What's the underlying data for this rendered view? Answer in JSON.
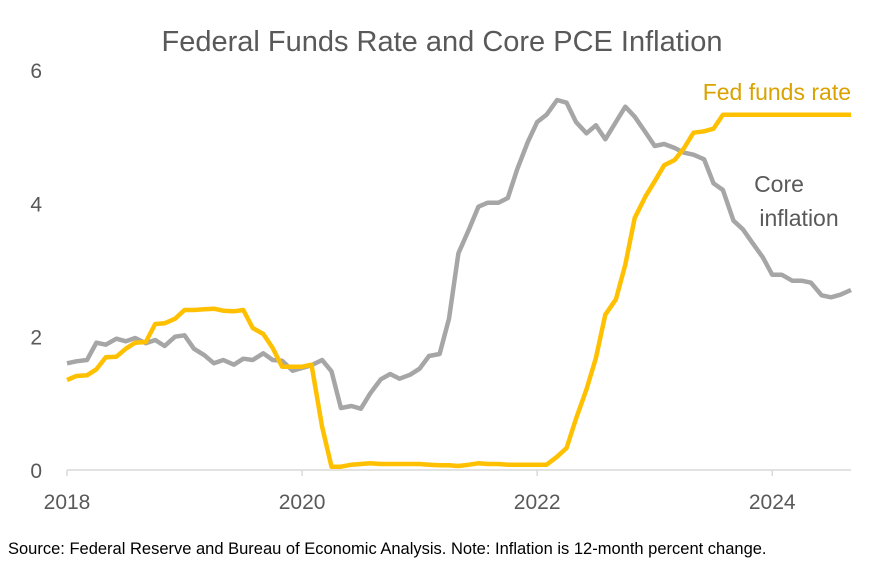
{
  "chart_data": {
    "type": "line",
    "title": "Federal Funds Rate and Core PCE Inflation",
    "x_ticks": [
      2018,
      2020,
      2022,
      2024
    ],
    "y_ticks": [
      0,
      2,
      4,
      6
    ],
    "xlim": [
      2018.0,
      2024.67
    ],
    "ylim": [
      0,
      6
    ],
    "grid": false,
    "annotations": {
      "fed_label": "Fed funds rate",
      "core_label_line1": "Core",
      "core_label_line2": "inflation"
    },
    "colors": {
      "fed": "#FFC000",
      "core": "#A6A6A6",
      "text": "#595959"
    },
    "series": [
      {
        "key": "fed",
        "x": [
          2018.0,
          2018.08,
          2018.17,
          2018.25,
          2018.33,
          2018.42,
          2018.5,
          2018.58,
          2018.67,
          2018.75,
          2018.83,
          2018.92,
          2019.0,
          2019.08,
          2019.17,
          2019.25,
          2019.33,
          2019.42,
          2019.5,
          2019.58,
          2019.67,
          2019.75,
          2019.83,
          2019.92,
          2020.0,
          2020.08,
          2020.17,
          2020.25,
          2020.33,
          2020.42,
          2020.5,
          2020.58,
          2020.67,
          2020.75,
          2020.83,
          2020.92,
          2021.0,
          2021.08,
          2021.17,
          2021.25,
          2021.33,
          2021.42,
          2021.5,
          2021.58,
          2021.67,
          2021.75,
          2021.83,
          2021.92,
          2022.0,
          2022.08,
          2022.17,
          2022.25,
          2022.33,
          2022.42,
          2022.5,
          2022.58,
          2022.67,
          2022.75,
          2022.83,
          2022.92,
          2023.0,
          2023.08,
          2023.17,
          2023.25,
          2023.33,
          2023.42,
          2023.5,
          2023.58,
          2023.67,
          2023.75,
          2023.83,
          2023.92,
          2024.0,
          2024.08,
          2024.17,
          2024.25,
          2024.33,
          2024.42,
          2024.5,
          2024.58,
          2024.67
        ],
        "y": [
          1.35,
          1.41,
          1.42,
          1.51,
          1.69,
          1.7,
          1.82,
          1.91,
          1.92,
          2.19,
          2.2,
          2.27,
          2.4,
          2.4,
          2.41,
          2.42,
          2.39,
          2.38,
          2.4,
          2.13,
          2.04,
          1.83,
          1.55,
          1.55,
          1.55,
          1.58,
          0.65,
          0.05,
          0.05,
          0.08,
          0.09,
          0.1,
          0.09,
          0.09,
          0.09,
          0.09,
          0.09,
          0.08,
          0.07,
          0.07,
          0.06,
          0.08,
          0.1,
          0.09,
          0.09,
          0.08,
          0.08,
          0.08,
          0.08,
          0.08,
          0.2,
          0.33,
          0.77,
          1.21,
          1.68,
          2.33,
          2.56,
          3.08,
          3.78,
          4.1,
          4.33,
          4.57,
          4.65,
          4.83,
          5.06,
          5.08,
          5.12,
          5.33,
          5.33,
          5.33,
          5.33,
          5.33,
          5.33,
          5.33,
          5.33,
          5.33,
          5.33,
          5.33,
          5.33,
          5.33,
          5.33
        ]
      },
      {
        "key": "core",
        "x": [
          2018.0,
          2018.08,
          2018.17,
          2018.25,
          2018.33,
          2018.42,
          2018.5,
          2018.58,
          2018.67,
          2018.75,
          2018.83,
          2018.92,
          2019.0,
          2019.08,
          2019.17,
          2019.25,
          2019.33,
          2019.42,
          2019.5,
          2019.58,
          2019.67,
          2019.75,
          2019.83,
          2019.92,
          2020.0,
          2020.08,
          2020.17,
          2020.25,
          2020.33,
          2020.42,
          2020.5,
          2020.58,
          2020.67,
          2020.75,
          2020.83,
          2020.92,
          2021.0,
          2021.08,
          2021.17,
          2021.25,
          2021.33,
          2021.42,
          2021.5,
          2021.58,
          2021.67,
          2021.75,
          2021.83,
          2021.92,
          2022.0,
          2022.08,
          2022.17,
          2022.25,
          2022.33,
          2022.42,
          2022.5,
          2022.58,
          2022.67,
          2022.75,
          2022.83,
          2022.92,
          2023.0,
          2023.08,
          2023.17,
          2023.25,
          2023.33,
          2023.42,
          2023.5,
          2023.58,
          2023.67,
          2023.75,
          2023.83,
          2023.92,
          2024.0,
          2024.08,
          2024.17,
          2024.25,
          2024.33,
          2024.42,
          2024.5,
          2024.58,
          2024.67
        ],
        "y": [
          1.6,
          1.63,
          1.65,
          1.91,
          1.88,
          1.97,
          1.93,
          1.98,
          1.9,
          1.95,
          1.86,
          2.0,
          2.02,
          1.82,
          1.72,
          1.6,
          1.65,
          1.58,
          1.67,
          1.65,
          1.75,
          1.65,
          1.64,
          1.49,
          1.53,
          1.57,
          1.65,
          1.48,
          0.93,
          0.96,
          0.92,
          1.15,
          1.36,
          1.44,
          1.37,
          1.43,
          1.52,
          1.71,
          1.74,
          2.27,
          3.25,
          3.61,
          3.95,
          4.01,
          4.01,
          4.08,
          4.51,
          4.92,
          5.22,
          5.33,
          5.55,
          5.51,
          5.22,
          5.05,
          5.17,
          4.96,
          5.22,
          5.45,
          5.3,
          5.07,
          4.86,
          4.89,
          4.83,
          4.76,
          4.73,
          4.66,
          4.3,
          4.2,
          3.74,
          3.61,
          3.41,
          3.19,
          2.93,
          2.93,
          2.84,
          2.84,
          2.81,
          2.62,
          2.59,
          2.63,
          2.7
        ]
      }
    ],
    "source": "Source: Federal Reserve and Bureau of Economic Analysis. Note: Inflation is 12-month percent change."
  }
}
